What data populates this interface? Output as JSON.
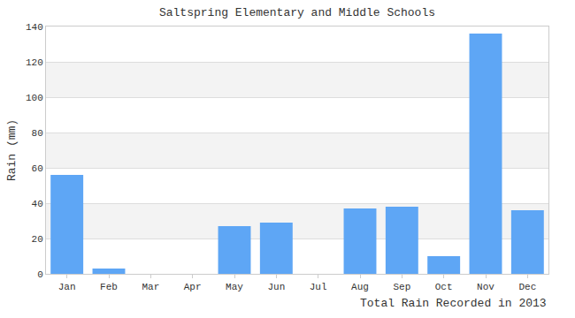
{
  "chart_data": {
    "type": "bar",
    "title": "Saltspring Elementary and Middle Schools",
    "ylabel": "Rain (mm)",
    "xlabel": "Total Rain Recorded in 2013",
    "categories": [
      "Jan",
      "Feb",
      "Mar",
      "Apr",
      "May",
      "Jun",
      "Jul",
      "Aug",
      "Sep",
      "Oct",
      "Nov",
      "Dec"
    ],
    "values": [
      56,
      3,
      0,
      0,
      27,
      29,
      0,
      37,
      38,
      10,
      136,
      36
    ],
    "color": "#5ea6f5",
    "ylim": [
      0,
      140
    ],
    "yticks": [
      0,
      20,
      40,
      60,
      80,
      100,
      120,
      140
    ],
    "grid": true
  }
}
